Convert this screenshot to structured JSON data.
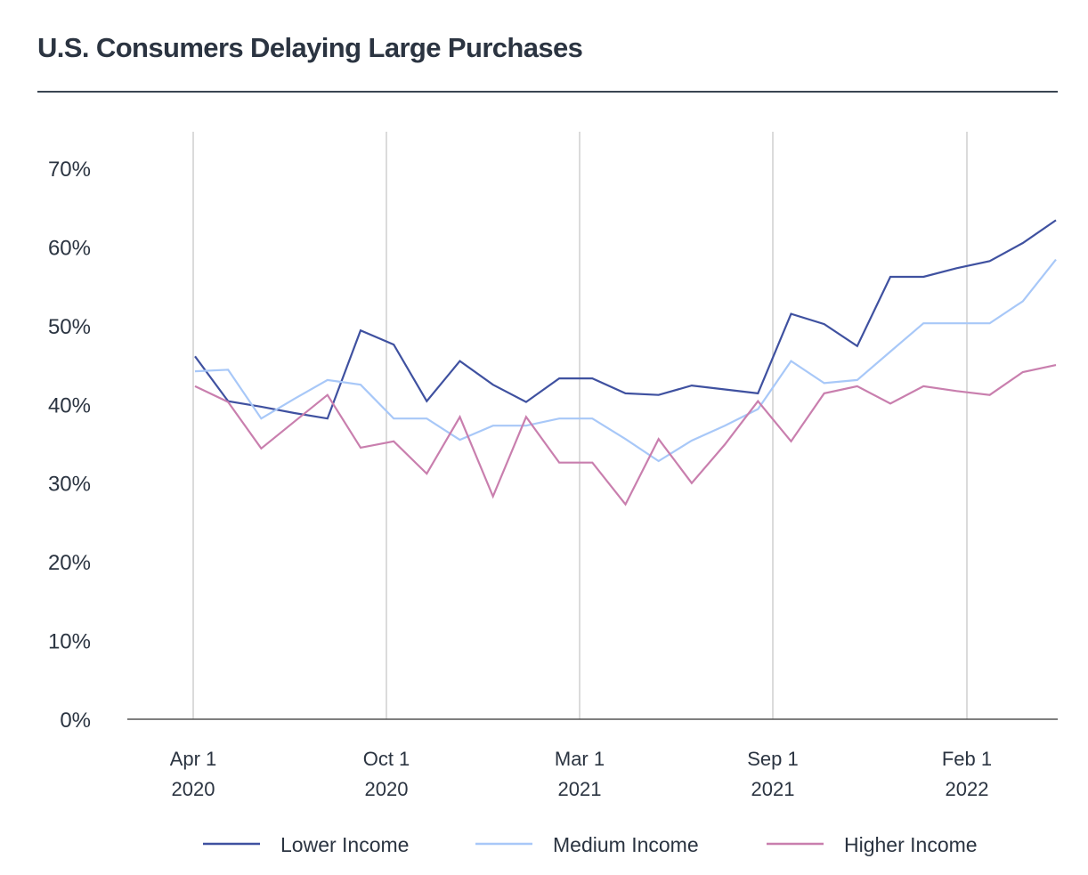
{
  "chart_data": {
    "type": "line",
    "title": "U.S. Consumers Delaying Large Purchases",
    "xlabel": "",
    "ylabel": "",
    "ylim": [
      0,
      70
    ],
    "y_ticks": [
      "0%",
      "10%",
      "20%",
      "30%",
      "40%",
      "50%",
      "60%",
      "70%"
    ],
    "y_tick_values": [
      0,
      10,
      20,
      30,
      40,
      50,
      60,
      70
    ],
    "x_ticks": [
      {
        "line1": "Apr 1",
        "line2": "2020"
      },
      {
        "line1": "Oct 1",
        "line2": "2020"
      },
      {
        "line1": "Mar 1",
        "line2": "2021"
      },
      {
        "line1": "Sep 1",
        "line2": "2021"
      },
      {
        "line1": "Feb 1",
        "line2": "2022"
      }
    ],
    "grid": "vertical at x ticks",
    "legend_position": "bottom",
    "series": [
      {
        "name": "Lower Income",
        "color": "#3f51a0",
        "values": [
          46.1,
          40.4,
          39.7,
          38.9,
          38.2,
          49.4,
          47.6,
          40.4,
          45.5,
          42.5,
          40.3,
          43.3,
          43.3,
          41.4,
          41.2,
          42.4,
          41.9,
          41.4,
          51.5,
          50.2,
          47.4,
          56.2,
          56.2,
          57.3,
          58.2,
          60.5,
          63.4
        ]
      },
      {
        "name": "Medium Income",
        "color": "#a8c8f8",
        "values": [
          44.2,
          44.4,
          38.2,
          40.7,
          43.1,
          42.5,
          38.2,
          38.2,
          35.5,
          37.3,
          37.3,
          38.2,
          38.2,
          35.6,
          32.8,
          35.4,
          37.3,
          39.4,
          45.5,
          42.7,
          43.1,
          46.7,
          50.3,
          50.3,
          50.3,
          53.1,
          58.4
        ]
      },
      {
        "name": "Higher Income",
        "color": "#c97fae",
        "values": [
          42.3,
          40.3,
          34.4,
          37.8,
          41.2,
          34.5,
          35.3,
          31.2,
          38.4,
          28.3,
          38.4,
          32.6,
          32.6,
          27.3,
          35.6,
          30.0,
          34.9,
          40.4,
          35.3,
          41.4,
          42.3,
          40.1,
          42.3,
          41.7,
          41.2,
          44.1,
          45.0
        ]
      }
    ]
  }
}
